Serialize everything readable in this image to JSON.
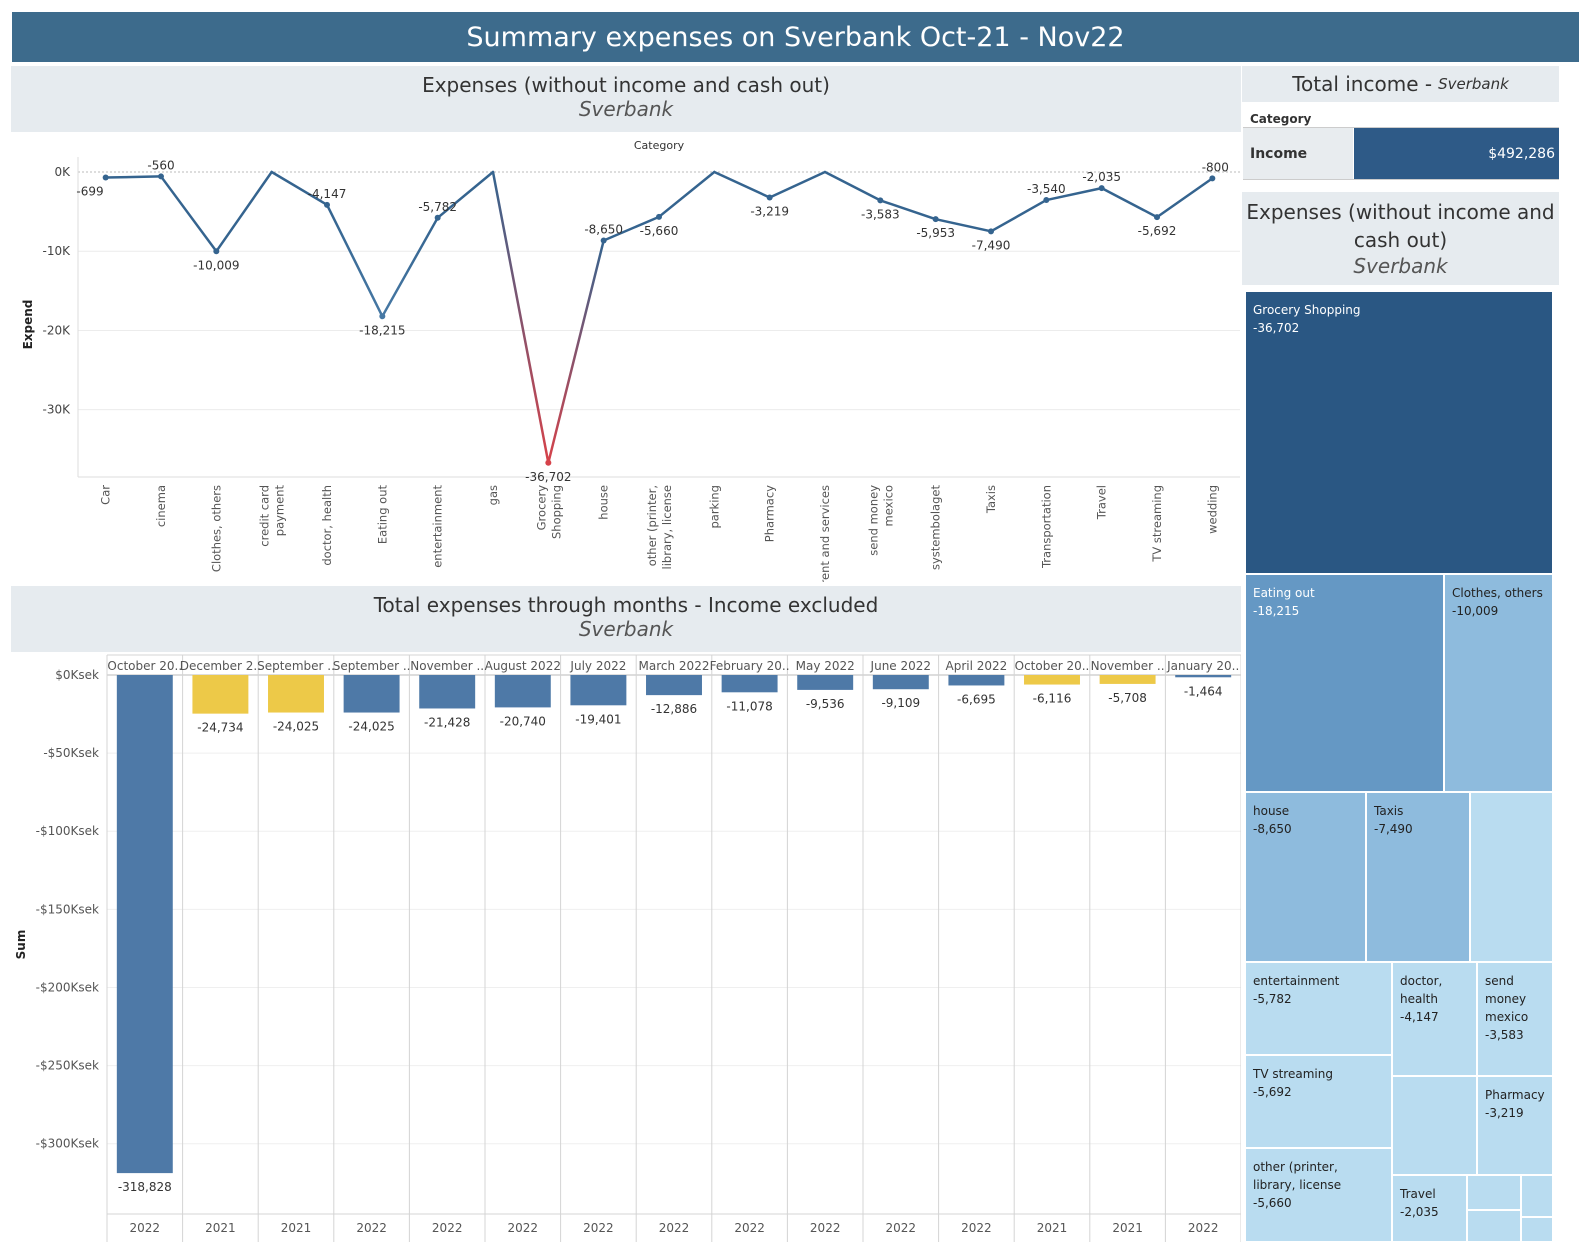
{
  "dashboard_title": "Summary expenses on Sverbank Oct-21 - Nov22",
  "line_panel": {
    "title": "Expenses (without income and cash out)",
    "subtitle": "Sverbank"
  },
  "bar_panel": {
    "title": "Total expenses through months - Income excluded",
    "subtitle": "Sverbank"
  },
  "income_panel": {
    "title": "Total income - ",
    "title_sub": "Sverbank",
    "category_header": "Category",
    "row_label": "Income",
    "row_value": "$492,286",
    "row_color": "#2e5a87"
  },
  "treemap_panel": {
    "title": "Expenses (without income and cash out)",
    "subtitle": "Sverbank",
    "items": [
      {
        "label": "Grocery Shopping",
        "value": "-36,702",
        "color": "#2a5783"
      },
      {
        "label": "Eating out",
        "value": "-18,215",
        "color": "#6598c4"
      },
      {
        "label": "Clothes, others",
        "value": "-10,009",
        "color": "#8ebbdd"
      },
      {
        "label": "house",
        "value": "-8,650",
        "color": "#8ebbdd"
      },
      {
        "label": "Taxis",
        "value": "-7,490",
        "color": "#8ebbdd"
      },
      {
        "label": "",
        "value": "",
        "color": "#b9dcf0"
      },
      {
        "label": "entertainment",
        "value": "-5,782",
        "color": "#b9dcf0"
      },
      {
        "label": "doctor, health",
        "value": "-4,147",
        "color": "#b9dcf0"
      },
      {
        "label": "send money mexico",
        "value": "-3,583",
        "color": "#b9dcf0"
      },
      {
        "label": "TV streaming",
        "value": "-5,692",
        "color": "#b9dcf0"
      },
      {
        "label": "",
        "value": "",
        "color": "#b9dcf0"
      },
      {
        "label": "Pharmacy",
        "value": "-3,219",
        "color": "#b9dcf0"
      },
      {
        "label": "other (printer, library, license",
        "value": "-5,660",
        "color": "#b9dcf0"
      },
      {
        "label": "Travel",
        "value": "-2,035",
        "color": "#b9dcf0"
      },
      {
        "label": "",
        "value": "",
        "color": "#b9dcf0"
      },
      {
        "label": "",
        "value": "",
        "color": "#b9dcf0"
      },
      {
        "label": "",
        "value": "",
        "color": "#b9dcf0"
      },
      {
        "label": "",
        "value": "",
        "color": "#b9dcf0"
      }
    ]
  },
  "chart_data": [
    {
      "type": "line",
      "title": "Expenses (without income and cash out)",
      "subtitle": "Sverbank",
      "xlabel": "Category",
      "ylabel": "Expend",
      "yticks": [
        "0K",
        "-10K",
        "-20K",
        "-30K"
      ],
      "ytick_values": [
        0,
        -10000,
        -20000,
        -30000
      ],
      "ylim": [
        -38500,
        0
      ],
      "categories": [
        "Car",
        "cinema",
        "Clothes, others",
        "credit card payment",
        "doctor, health",
        "Eating out",
        "entertainment",
        "gas",
        "Grocery Shopping",
        "house",
        "other (printer, library, license",
        "parking",
        "Pharmacy",
        "rent and services",
        "send money mexico",
        "systembolaget",
        "Taxis",
        "Transportation",
        "Travel",
        "TV streaming",
        "wedding"
      ],
      "category_lines": [
        [
          "Car"
        ],
        [
          "cinema"
        ],
        [
          "Clothes, others"
        ],
        [
          "credit card",
          "payment"
        ],
        [
          "doctor, health"
        ],
        [
          "Eating out"
        ],
        [
          "entertainment"
        ],
        [
          "gas"
        ],
        [
          "Grocery",
          "Shopping"
        ],
        [
          "house"
        ],
        [
          "other (printer,",
          "library, license"
        ],
        [
          "parking"
        ],
        [
          "Pharmacy"
        ],
        [
          "rent and services"
        ],
        [
          "send money",
          "mexico"
        ],
        [
          "systembolaget"
        ],
        [
          "Taxis"
        ],
        [
          "Transportation"
        ],
        [
          "Travel"
        ],
        [
          "TV streaming"
        ],
        [
          "wedding"
        ]
      ],
      "values": [
        -699,
        -560,
        -10009,
        0,
        -4147,
        -18215,
        -5782,
        0,
        -36702,
        -8650,
        -5660,
        0,
        -3219,
        0,
        -3583,
        -5953,
        -7490,
        -3540,
        -2035,
        -5692,
        -800
      ],
      "data_labels": [
        "-699",
        "-560",
        "-10,009",
        "",
        "-4,147",
        "-18,215",
        "-5,782",
        "",
        "-36,702",
        "-8,650",
        "-5,660",
        "",
        "-3,219",
        "",
        "-3,583",
        "-5,953",
        "-7,490",
        "-3,540",
        "-2,035",
        "-5,692",
        "-800"
      ],
      "colors": {
        "line": "#35648f",
        "low": "#6fa8d6",
        "high": "#d6424a"
      }
    },
    {
      "type": "bar",
      "title": "Total expenses through months - Income excluded",
      "subtitle": "Sverbank",
      "ylabel": "Sum",
      "yticks": [
        "$0Ksek",
        "-$50Ksek",
        "-$100Ksek",
        "-$150Ksek",
        "-$200Ksek",
        "-$250Ksek",
        "-$300Ksek"
      ],
      "ytick_values": [
        0,
        -50000,
        -100000,
        -150000,
        -200000,
        -250000,
        -300000
      ],
      "ylim": [
        -345000,
        0
      ],
      "categories": [
        "October 20..",
        "December 2..",
        "September ..",
        "September ..",
        "November ..",
        "August 2022",
        "July 2022",
        "March 2022",
        "February 20..",
        "May 2022",
        "June 2022",
        "April 2022",
        "October 20..",
        "November ..",
        "January 20.."
      ],
      "years": [
        "2022",
        "2021",
        "2021",
        "2022",
        "2022",
        "2022",
        "2022",
        "2022",
        "2022",
        "2022",
        "2022",
        "2022",
        "2021",
        "2021",
        "2022"
      ],
      "values": [
        -318828,
        -24734,
        -24025,
        -24025,
        -21428,
        -20740,
        -19401,
        -12886,
        -11078,
        -9536,
        -9109,
        -6695,
        -6116,
        -5708,
        -1464
      ],
      "data_labels": [
        "-318,828",
        "-24,734",
        "-24,025",
        "-24,025",
        "-21,428",
        "-20,740",
        "-19,401",
        "-12,886",
        "-11,078",
        "-9,536",
        "-9,109",
        "-6,695",
        "-6,116",
        "-5,708",
        "-1,464"
      ],
      "colors": {
        "2021": "#edc948",
        "2022": "#4e79a7"
      }
    }
  ]
}
